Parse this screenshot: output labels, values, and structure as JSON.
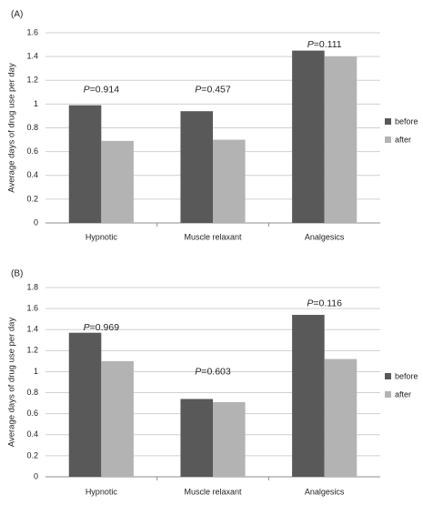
{
  "chart_data": [
    {
      "type": "bar",
      "panel_label": "(A)",
      "ylabel": "Average days of drug use per day",
      "categories": [
        "Hypnotic",
        "Muscle relaxant",
        "Analgesics"
      ],
      "series": [
        {
          "name": "before",
          "values": [
            0.99,
            0.94,
            1.45
          ],
          "color": "#595959"
        },
        {
          "name": "after",
          "values": [
            0.69,
            0.7,
            1.4
          ],
          "color": "#b3b3b3"
        }
      ],
      "ylim": [
        0,
        1.6
      ],
      "yticks": [
        0,
        0.2,
        0.4,
        0.6,
        0.8,
        1,
        1.2,
        1.4,
        1.6
      ],
      "ytick_labels": [
        "0",
        "0.2",
        "0.4",
        "0.6",
        "0.8",
        "1",
        "1.2",
        "1.4",
        "1.6"
      ],
      "annotations": [
        {
          "category": "Hypnotic",
          "label": "0.914",
          "y": 1.12
        },
        {
          "category": "Muscle relaxant",
          "label": "0.457",
          "y": 1.12
        },
        {
          "category": "Analgesics",
          "label": "0.111",
          "y": 1.5
        }
      ],
      "grid": true,
      "legend_position": "right"
    },
    {
      "type": "bar",
      "panel_label": "(B)",
      "ylabel": "Average days of drug use per day",
      "categories": [
        "Hypnotic",
        "Muscle relaxant",
        "Analgesics"
      ],
      "series": [
        {
          "name": "before",
          "values": [
            1.37,
            0.74,
            1.54
          ],
          "color": "#595959"
        },
        {
          "name": "after",
          "values": [
            1.1,
            0.71,
            1.12
          ],
          "color": "#b3b3b3"
        }
      ],
      "ylim": [
        0,
        1.8
      ],
      "yticks": [
        0,
        0.2,
        0.4,
        0.6,
        0.8,
        1,
        1.2,
        1.4,
        1.6,
        1.8
      ],
      "ytick_labels": [
        "0",
        "0.2",
        "0.4",
        "0.6",
        "0.8",
        "1",
        "1.2",
        "1.4",
        "1.6",
        "1.8"
      ],
      "annotations": [
        {
          "category": "Hypnotic",
          "label": "0.969",
          "y": 1.42
        },
        {
          "category": "Muscle relaxant",
          "label": "0.603",
          "y": 1.0
        },
        {
          "category": "Analgesics",
          "label": "0.116",
          "y": 1.65
        }
      ],
      "grid": true,
      "legend_position": "right"
    }
  ],
  "annotation_prefix": "P",
  "annotation_separator": "=",
  "colors": {
    "before": "#595959",
    "after": "#b3b3b3",
    "grid": "#d0d0d0",
    "axis": "#8c8c8c"
  }
}
